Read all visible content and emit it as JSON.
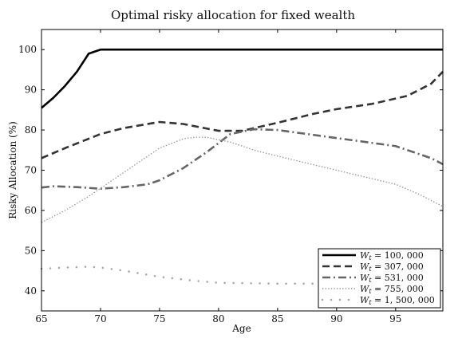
{
  "chart_data": {
    "type": "line",
    "title": "Optimal risky allocation for fixed wealth",
    "xlabel": "Age",
    "ylabel": "Risky Allocation (%)",
    "xlim": [
      65,
      99
    ],
    "ylim": [
      35,
      105
    ],
    "xticks": [
      65,
      70,
      75,
      80,
      85,
      90,
      95
    ],
    "yticks": [
      40,
      50,
      60,
      70,
      80,
      90,
      100
    ],
    "grid": false,
    "legend_position": "bottom-right",
    "series": [
      {
        "name": "W_t = 100,000",
        "label": "Wt = 100, 000",
        "style": "solid",
        "color": "#000000",
        "x": [
          65,
          66,
          67,
          68,
          69,
          70,
          75,
          80,
          85,
          90,
          95,
          99
        ],
        "y": [
          85.5,
          88,
          91,
          94.5,
          99,
          100,
          100,
          100,
          100,
          100,
          100,
          100
        ]
      },
      {
        "name": "W_t = 307,000",
        "label": "Wt = 307, 000",
        "style": "dashed",
        "color": "#333333",
        "x": [
          65,
          67,
          70,
          72,
          75,
          77,
          80,
          82,
          85,
          88,
          90,
          93,
          96,
          97,
          98,
          99
        ],
        "y": [
          73,
          75.5,
          79,
          80.5,
          82,
          81.5,
          79.8,
          79.8,
          81.8,
          84,
          85.2,
          86.5,
          88.5,
          90,
          91.5,
          94.5
        ]
      },
      {
        "name": "W_t = 531,000",
        "label": "Wt = 531, 000",
        "style": "dashdot",
        "color": "#666666",
        "x": [
          65,
          66,
          68,
          70,
          72,
          74,
          75,
          77,
          79,
          81,
          83,
          85,
          90,
          95,
          97,
          98,
          99
        ],
        "y": [
          65.7,
          66,
          65.8,
          65.4,
          65.8,
          66.5,
          67.5,
          70.5,
          74.5,
          79,
          80.2,
          80,
          78,
          76,
          74,
          73,
          71.5
        ]
      },
      {
        "name": "W_t = 755,000",
        "label": "Wt = 755, 000",
        "style": "dotted",
        "color": "#999999",
        "x": [
          65,
          67,
          69,
          71,
          73,
          75,
          77,
          78,
          79,
          81,
          83,
          85,
          90,
          95,
          97,
          99
        ],
        "y": [
          57,
          60,
          63.5,
          67.5,
          71.5,
          75.5,
          77.8,
          78.2,
          78.2,
          77,
          75,
          73.5,
          70,
          66.5,
          64,
          61
        ]
      },
      {
        "name": "W_t = 1,500,000",
        "label": "Wt = 1, 500, 000",
        "style": "sparse-dots",
        "color": "#aaaaaa",
        "x": [
          65,
          67,
          69,
          70,
          72,
          75,
          78,
          80,
          85,
          90,
          95,
          99
        ],
        "y": [
          45.5,
          45.8,
          46,
          45.8,
          45,
          43.5,
          42.5,
          42,
          41.8,
          41.8,
          42.2,
          42.6
        ]
      }
    ]
  }
}
